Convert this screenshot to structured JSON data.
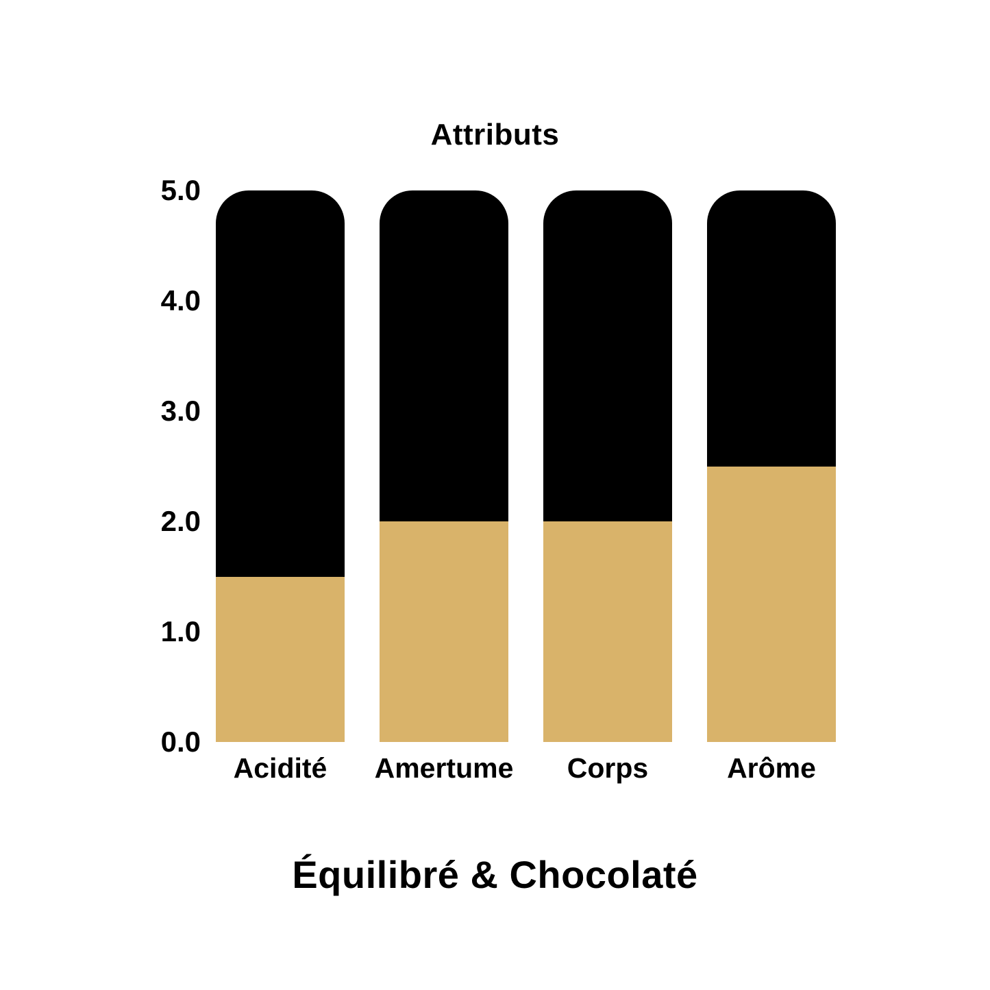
{
  "chart_data": {
    "type": "bar",
    "stacked": true,
    "title": "Attributs",
    "categories": [
      "Acidité",
      "Amertume",
      "Corps",
      "Arôme"
    ],
    "series": [
      {
        "name": "score",
        "color": "#D9B36A",
        "values": [
          1.5,
          2.0,
          2.0,
          2.5
        ]
      },
      {
        "name": "remainder-to-max",
        "color": "#000000",
        "values": [
          3.5,
          3.0,
          3.0,
          2.5
        ]
      }
    ],
    "ylim": [
      0,
      5
    ],
    "yticks": [
      {
        "value": 5,
        "label": "5.0"
      },
      {
        "value": 4,
        "label": "4.0"
      },
      {
        "value": 3,
        "label": "3.0"
      },
      {
        "value": 2,
        "label": "2.0"
      },
      {
        "value": 1,
        "label": "1.0"
      },
      {
        "value": 0,
        "label": "0.0"
      }
    ],
    "grid": false,
    "legend": "none",
    "background": "#ffffff"
  },
  "caption": "Équilibré & Chocolaté"
}
